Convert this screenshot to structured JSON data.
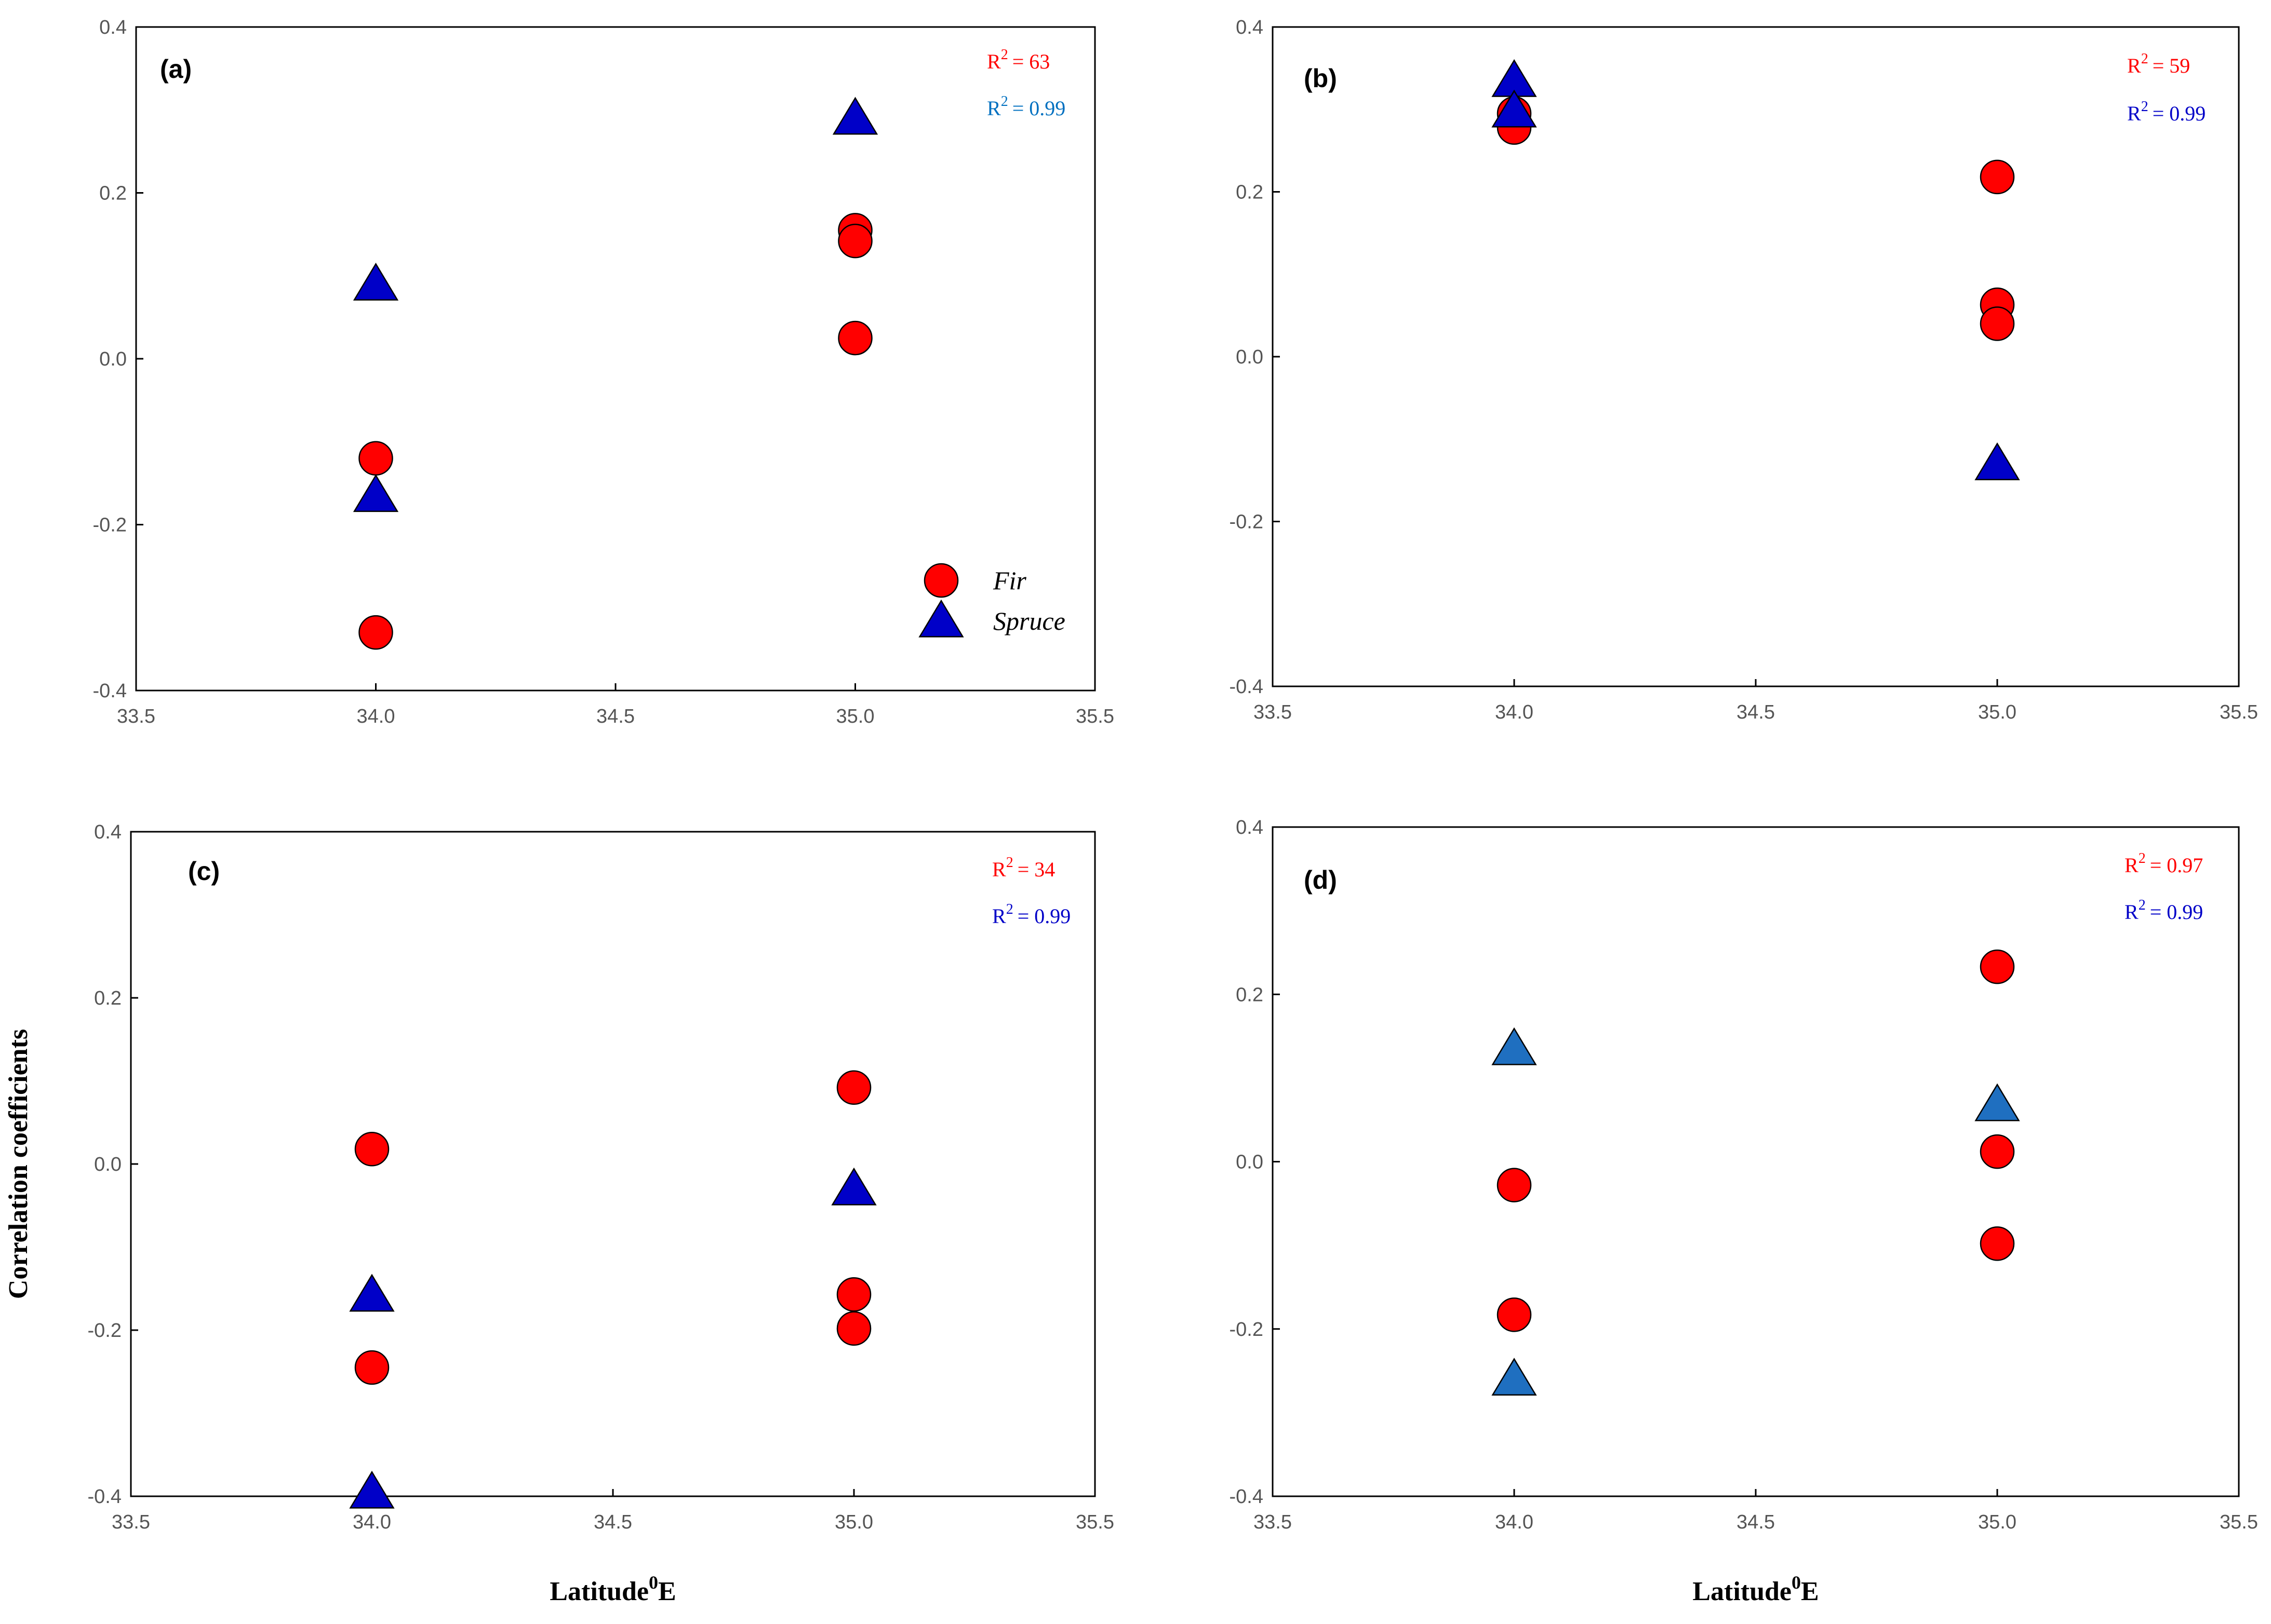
{
  "chart_data": [
    {
      "type": "scatter",
      "panel_label": "(a)",
      "xlim": [
        33.5,
        35.5
      ],
      "ylim": [
        -0.4,
        0.4
      ],
      "xticks": [
        "33.5",
        "34.0",
        "34.5",
        "35.0",
        "35.5"
      ],
      "yticks": [
        "0.4",
        "0.2",
        "0.0",
        "-0.2",
        "-0.4"
      ],
      "xlabel": "",
      "ylabel": "",
      "series": [
        {
          "name": "Fir",
          "marker": "circle",
          "color": "#ff0000",
          "r2_label": "R",
          "r2_exp": "2",
          "r2_value": "= 63",
          "r2_color": "#ff0000",
          "points": [
            {
              "x": 34.0,
              "y": -0.12
            },
            {
              "x": 34.0,
              "y": -0.33
            },
            {
              "x": 35.0,
              "y": 0.155
            },
            {
              "x": 35.0,
              "y": 0.142
            },
            {
              "x": 35.0,
              "y": 0.025
            }
          ]
        },
        {
          "name": "Spruce",
          "marker": "triangle",
          "color": "#0000c8",
          "r2_label": "R",
          "r2_exp": "2",
          "r2_value": "= 0.99",
          "r2_color": "#0070c0",
          "points": [
            {
              "x": 34.0,
              "y": 0.09
            },
            {
              "x": 34.0,
              "y": -0.165
            },
            {
              "x": 35.0,
              "y": 0.29
            }
          ]
        }
      ],
      "legend": {
        "position": "bottom-right",
        "entries": [
          "Fir",
          "Spruce"
        ]
      }
    },
    {
      "type": "scatter",
      "panel_label": "(b)",
      "xlim": [
        33.5,
        35.5
      ],
      "ylim": [
        -0.4,
        0.4
      ],
      "xticks": [
        "33.5",
        "34.0",
        "34.5",
        "35.0",
        "35.5"
      ],
      "yticks": [
        "0.4",
        "0.2",
        "0.0",
        "-0.2",
        "-0.4"
      ],
      "xlabel": "",
      "ylabel": "",
      "series": [
        {
          "name": "Fir",
          "marker": "circle",
          "color": "#ff0000",
          "r2_label": "R",
          "r2_exp": "2",
          "r2_value": "= 59",
          "r2_color": "#ff0000",
          "points": [
            {
              "x": 34.0,
              "y": 0.295
            },
            {
              "x": 34.0,
              "y": 0.278
            },
            {
              "x": 35.0,
              "y": 0.218
            },
            {
              "x": 35.0,
              "y": 0.063
            },
            {
              "x": 35.0,
              "y": 0.04
            }
          ]
        },
        {
          "name": "Spruce",
          "marker": "triangle",
          "color": "#0000c8",
          "r2_label": "R",
          "r2_exp": "2",
          "r2_value": "= 0.99",
          "r2_color": "#0000c8",
          "points": [
            {
              "x": 34.0,
              "y": 0.335
            },
            {
              "x": 34.0,
              "y": 0.298
            },
            {
              "x": 35.0,
              "y": -0.13
            }
          ]
        }
      ]
    },
    {
      "type": "scatter",
      "panel_label": "(c)",
      "xlim": [
        33.5,
        35.5
      ],
      "ylim": [
        -0.4,
        0.4
      ],
      "xticks": [
        "33.5",
        "34.0",
        "34.5",
        "35.0",
        "35.5"
      ],
      "yticks": [
        "0.4",
        "0.2",
        "0.0",
        "-0.2",
        "-0.4"
      ],
      "xlabel": "Latitude",
      "xlabel_sup": "0",
      "xlabel_suffix": "E",
      "ylabel": "Correlation coefficients",
      "series": [
        {
          "name": "Fir",
          "marker": "circle",
          "color": "#ff0000",
          "r2_label": "R",
          "r2_exp": "2",
          "r2_value": "= 34",
          "r2_color": "#ff0000",
          "points": [
            {
              "x": 34.0,
              "y": 0.018
            },
            {
              "x": 34.0,
              "y": -0.245
            },
            {
              "x": 35.0,
              "y": 0.092
            },
            {
              "x": 35.0,
              "y": -0.157
            },
            {
              "x": 35.0,
              "y": -0.198
            }
          ]
        },
        {
          "name": "Spruce",
          "marker": "triangle",
          "color": "#0000c8",
          "r2_label": "R",
          "r2_exp": "2",
          "r2_value": "= 0.99",
          "r2_color": "#0000c8",
          "points": [
            {
              "x": 34.0,
              "y": -0.158
            },
            {
              "x": 34.0,
              "y": -0.395
            },
            {
              "x": 35.0,
              "y": -0.03
            }
          ]
        }
      ]
    },
    {
      "type": "scatter",
      "panel_label": "(d)",
      "xlim": [
        33.5,
        35.5
      ],
      "ylim": [
        -0.4,
        0.4
      ],
      "xticks": [
        "33.5",
        "34.0",
        "34.5",
        "35.0",
        "35.5"
      ],
      "yticks": [
        "0.4",
        "0.2",
        "0.0",
        "-0.2",
        "-0.4"
      ],
      "xlabel": "Latitude",
      "xlabel_sup": "0",
      "xlabel_suffix": "E",
      "ylabel": "",
      "series": [
        {
          "name": "Fir",
          "marker": "circle",
          "color": "#ff0000",
          "r2_label": "R",
          "r2_exp": "2",
          "r2_value": "= 0.97",
          "r2_color": "#ff0000",
          "points": [
            {
              "x": 34.0,
              "y": -0.028
            },
            {
              "x": 34.0,
              "y": -0.183
            },
            {
              "x": 35.0,
              "y": 0.233
            },
            {
              "x": 35.0,
              "y": 0.012
            },
            {
              "x": 35.0,
              "y": -0.098
            }
          ]
        },
        {
          "name": "Spruce",
          "marker": "triangle",
          "color": "#1f6fc0",
          "r2_label": "R",
          "r2_exp": "2",
          "r2_value": "= 0.99",
          "r2_color": "#0000c8",
          "points": [
            {
              "x": 34.0,
              "y": 0.135
            },
            {
              "x": 34.0,
              "y": -0.26
            },
            {
              "x": 35.0,
              "y": 0.068
            }
          ]
        }
      ]
    }
  ]
}
